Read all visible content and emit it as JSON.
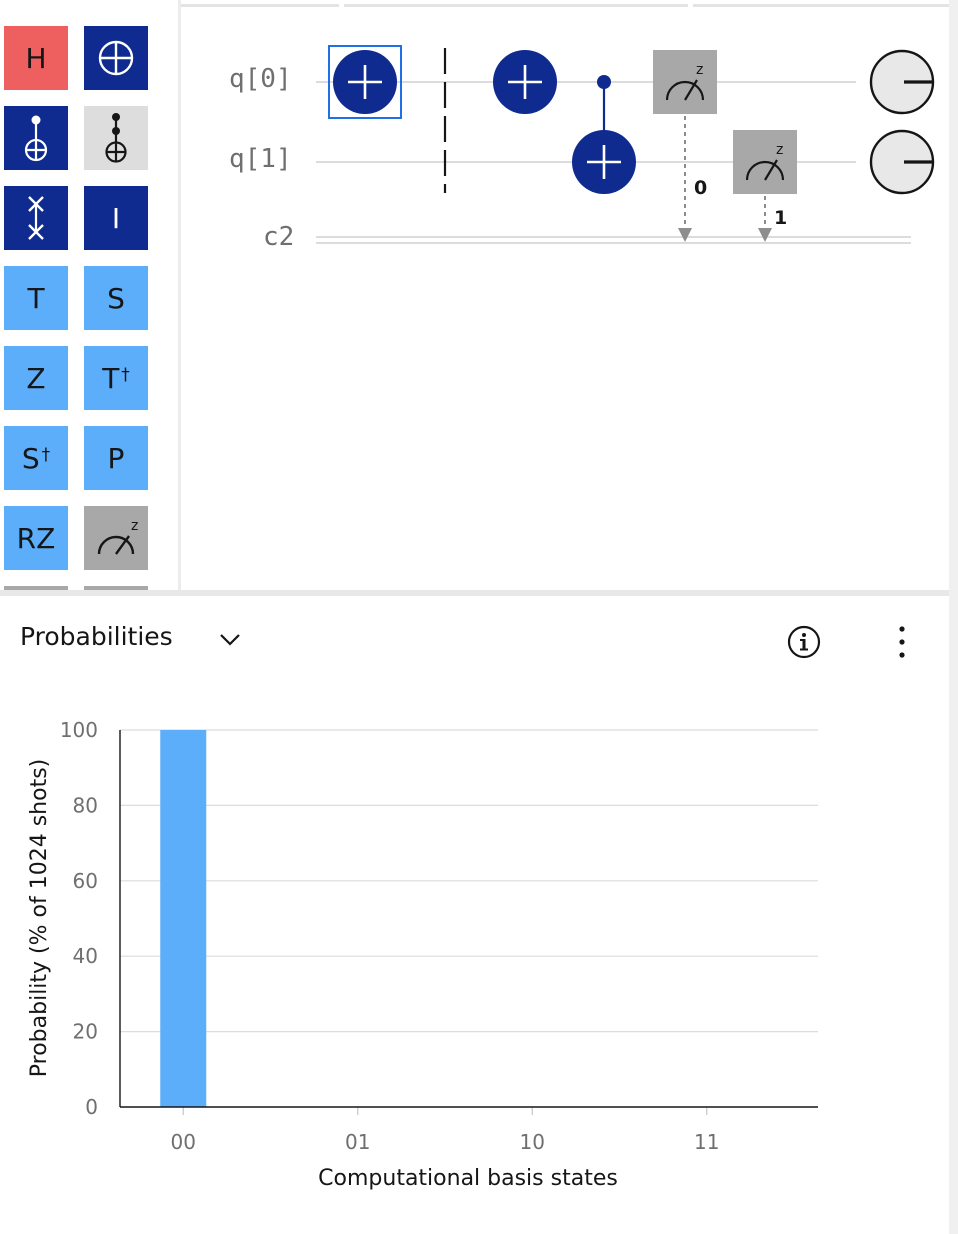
{
  "palette": {
    "gates": [
      {
        "id": "h",
        "label": "H",
        "sup": "",
        "bg": "#ee5f5f",
        "fg": "#161616",
        "icon": "h-gate"
      },
      {
        "id": "not",
        "label": "",
        "sup": "",
        "bg": "#0f2b8f",
        "fg": "#ffffff",
        "icon": "oplus-icon"
      },
      {
        "id": "cnot",
        "label": "",
        "sup": "",
        "bg": "#0f2b8f",
        "fg": "#ffffff",
        "icon": "cnot-icon"
      },
      {
        "id": "toffoli",
        "label": "",
        "sup": "",
        "bg": "#dddddd",
        "fg": "#161616",
        "icon": "toffoli-icon"
      },
      {
        "id": "swap",
        "label": "",
        "sup": "",
        "bg": "#0f2b8f",
        "fg": "#ffffff",
        "icon": "swap-icon"
      },
      {
        "id": "i",
        "label": "I",
        "sup": "",
        "bg": "#0f2b8f",
        "fg": "#ffffff",
        "icon": "identity-gate"
      },
      {
        "id": "t",
        "label": "T",
        "sup": "",
        "bg": "#5cadfa",
        "fg": "#161616",
        "icon": "t-gate"
      },
      {
        "id": "s",
        "label": "S",
        "sup": "",
        "bg": "#5cadfa",
        "fg": "#161616",
        "icon": "s-gate"
      },
      {
        "id": "z",
        "label": "Z",
        "sup": "",
        "bg": "#5cadfa",
        "fg": "#161616",
        "icon": "z-gate"
      },
      {
        "id": "tdg",
        "label": "T",
        "sup": "†",
        "bg": "#5cadfa",
        "fg": "#161616",
        "icon": "t-dagger-gate"
      },
      {
        "id": "sdg",
        "label": "S",
        "sup": "†",
        "bg": "#5cadfa",
        "fg": "#161616",
        "icon": "s-dagger-gate"
      },
      {
        "id": "p",
        "label": "P",
        "sup": "",
        "bg": "#5cadfa",
        "fg": "#161616",
        "icon": "p-gate"
      },
      {
        "id": "rz",
        "label": "RZ",
        "sup": "",
        "bg": "#5cadfa",
        "fg": "#161616",
        "icon": "rz-gate"
      },
      {
        "id": "measure",
        "label": "",
        "sup": "z",
        "bg": "#a8a8a8",
        "fg": "#161616",
        "icon": "measure-icon"
      }
    ]
  },
  "circuit": {
    "qubits": [
      "q[0]",
      "q[1]"
    ],
    "classical": "c2",
    "measure_basis": "z",
    "bits": [
      "0",
      "1"
    ],
    "colors": {
      "gate": "#0f2b8f",
      "measure": "#a8a8a8",
      "wire": "#d0d0d0",
      "selected": "#1f6fe5"
    }
  },
  "results": {
    "title": "Probabilities",
    "chevron_icon": "chevron-down-icon",
    "info_icon": "info-icon",
    "more_icon": "overflow-menu-icon"
  },
  "chart_data": {
    "type": "bar",
    "categories": [
      "00",
      "01",
      "10",
      "11"
    ],
    "values": [
      100,
      0,
      0,
      0
    ],
    "ylim": [
      0,
      100
    ],
    "yticks": [
      0,
      20,
      40,
      60,
      80,
      100
    ],
    "xlabel": "Computational basis states",
    "ylabel": "Probability (% of 1024 shots)",
    "bar_color": "#5cadfa",
    "grid": true
  }
}
